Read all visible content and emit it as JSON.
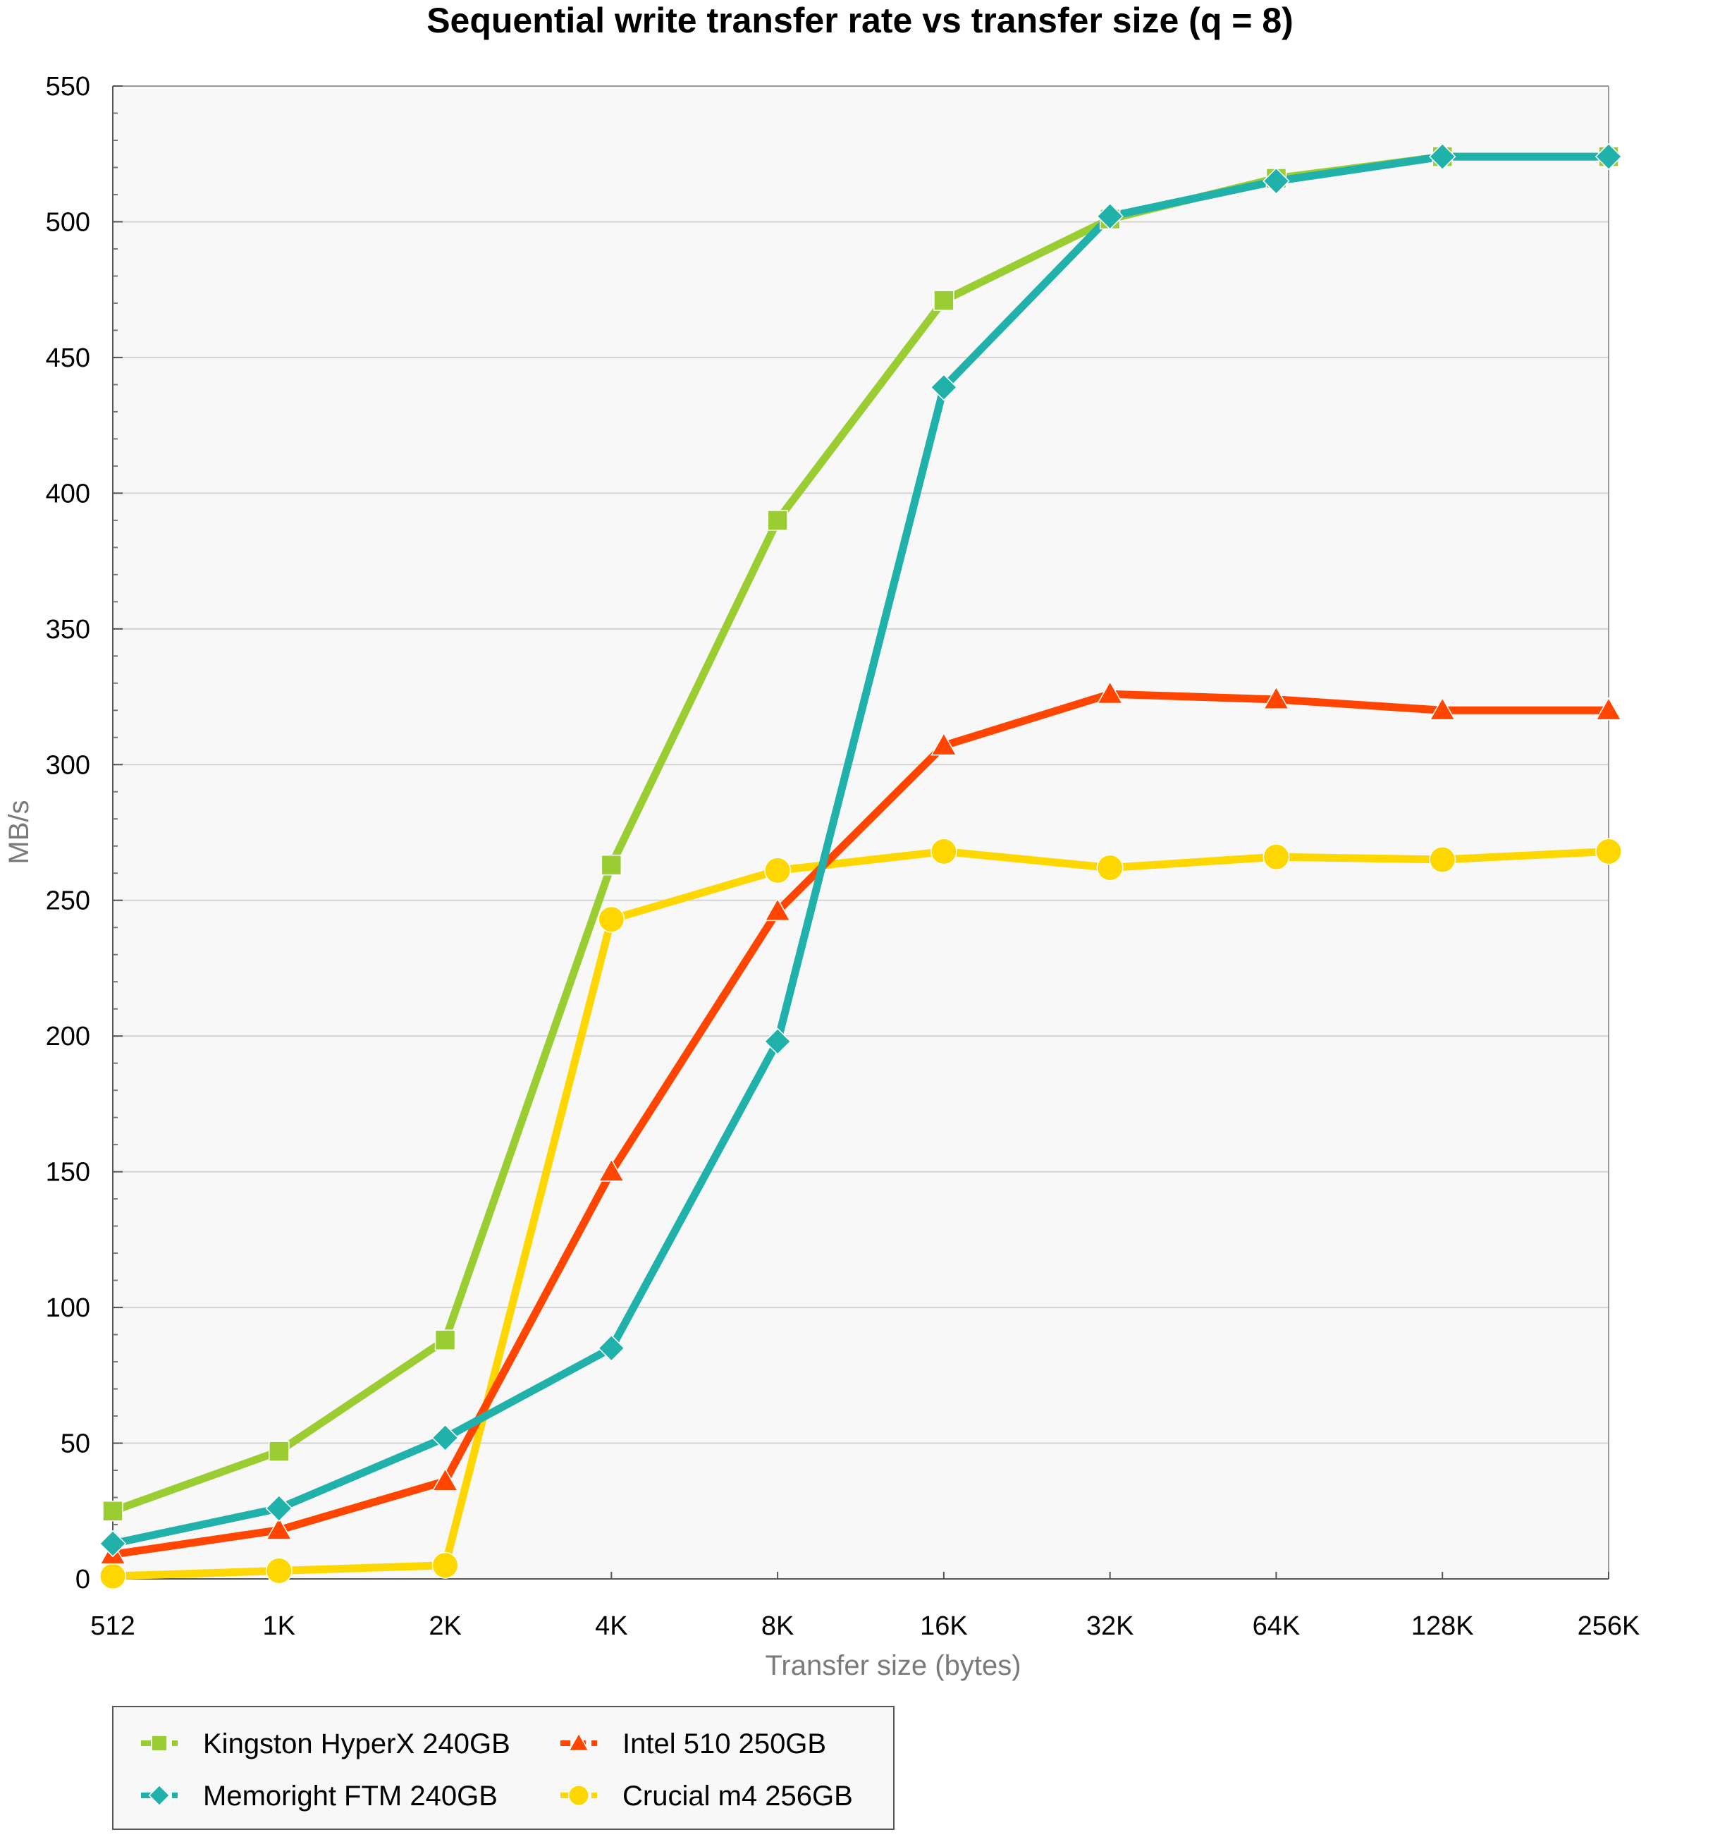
{
  "chart_data": {
    "type": "line",
    "title": "Sequential write transfer rate vs transfer size (q = 8)",
    "xlabel": "Transfer size (bytes)",
    "ylabel": "MB/s",
    "categories": [
      "512",
      "1K",
      "2K",
      "4K",
      "8K",
      "16K",
      "32K",
      "64K",
      "128K",
      "256K"
    ],
    "ylim": [
      0,
      550
    ],
    "yticks": [
      0,
      50,
      100,
      150,
      200,
      250,
      300,
      350,
      400,
      450,
      500,
      550
    ],
    "grid": true,
    "legend_position": "bottom-left",
    "series": [
      {
        "name": "Kingston HyperX 240GB",
        "color": "#9acd32",
        "marker": "square",
        "values": [
          25,
          47,
          88,
          263,
          390,
          471,
          501,
          516,
          524,
          524
        ]
      },
      {
        "name": "Memoright FTM 240GB",
        "color": "#20b2aa",
        "marker": "diamond",
        "values": [
          13,
          26,
          52,
          85,
          198,
          439,
          502,
          515,
          524,
          524
        ]
      },
      {
        "name": "Intel 510 250GB",
        "color": "#ff4500",
        "marker": "triangle",
        "values": [
          9,
          18,
          36,
          150,
          246,
          307,
          326,
          324,
          320,
          320
        ]
      },
      {
        "name": "Crucial m4 256GB",
        "color": "#ffd700",
        "marker": "circle",
        "values": [
          1,
          3,
          5,
          243,
          261,
          268,
          262,
          266,
          265,
          268
        ]
      }
    ]
  }
}
